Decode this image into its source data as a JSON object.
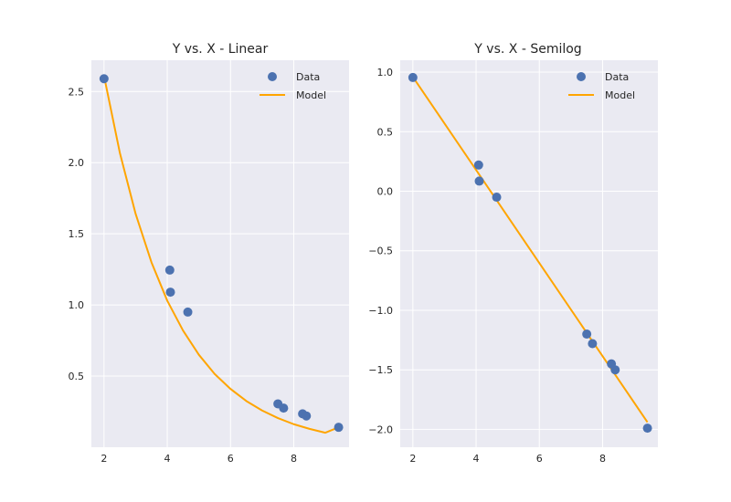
{
  "colors": {
    "axes_bg": "#EAEAF2",
    "grid": "#FFFFFF",
    "data_marker": "#4C72B0",
    "model_line": "#FFA500"
  },
  "chart_data": [
    {
      "type": "scatter",
      "title": "Y vs. X - Linear",
      "xlabel": "",
      "ylabel": "",
      "xlim": [
        1.6,
        9.75
      ],
      "ylim": [
        0.0,
        2.72
      ],
      "xticks": [
        "2",
        "4",
        "6",
        "8"
      ],
      "yticks": [
        "0.5",
        "1.0",
        "1.5",
        "2.0",
        "2.5"
      ],
      "grid": true,
      "legend_position": "top-right",
      "legend": [
        "Data",
        "Model"
      ],
      "series": [
        {
          "name": "Data",
          "kind": "scatter",
          "x": [
            2.0,
            4.08,
            4.1,
            4.65,
            7.5,
            7.68,
            8.28,
            8.4,
            9.42
          ],
          "y": [
            2.59,
            1.245,
            1.09,
            0.95,
            0.305,
            0.275,
            0.235,
            0.22,
            0.14
          ]
        },
        {
          "name": "Model",
          "kind": "line",
          "x": [
            2.0,
            2.5,
            3.0,
            3.5,
            4.0,
            4.5,
            5.0,
            5.5,
            6.0,
            6.5,
            7.0,
            7.5,
            8.0,
            8.5,
            9.0,
            9.42
          ],
          "y": [
            2.61,
            2.07,
            1.64,
            1.3,
            1.03,
            0.82,
            0.65,
            0.515,
            0.41,
            0.325,
            0.258,
            0.205,
            0.162,
            0.129,
            0.102,
            0.14
          ]
        }
      ]
    },
    {
      "type": "scatter",
      "title": "Y vs. X - Semilog",
      "xlabel": "",
      "ylabel": "",
      "xlim": [
        1.6,
        9.75
      ],
      "ylim": [
        -2.15,
        1.1
      ],
      "xticks": [
        "2",
        "4",
        "6",
        "8"
      ],
      "yticks": [
        "1.0",
        "0.5",
        "0.0",
        "−0.5",
        "−1.0",
        "−1.5",
        "−2.0"
      ],
      "grid": true,
      "legend_position": "top-right",
      "legend": [
        "Data",
        "Model"
      ],
      "series": [
        {
          "name": "Data",
          "kind": "scatter",
          "x": [
            2.0,
            4.08,
            4.1,
            4.65,
            7.5,
            7.68,
            8.28,
            8.4,
            9.42
          ],
          "y": [
            0.955,
            0.22,
            0.085,
            -0.05,
            -1.2,
            -1.28,
            -1.45,
            -1.5,
            -1.99
          ]
        },
        {
          "name": "Model",
          "kind": "line",
          "x": [
            2.0,
            9.42
          ],
          "y": [
            0.96,
            -1.94
          ]
        }
      ]
    }
  ]
}
